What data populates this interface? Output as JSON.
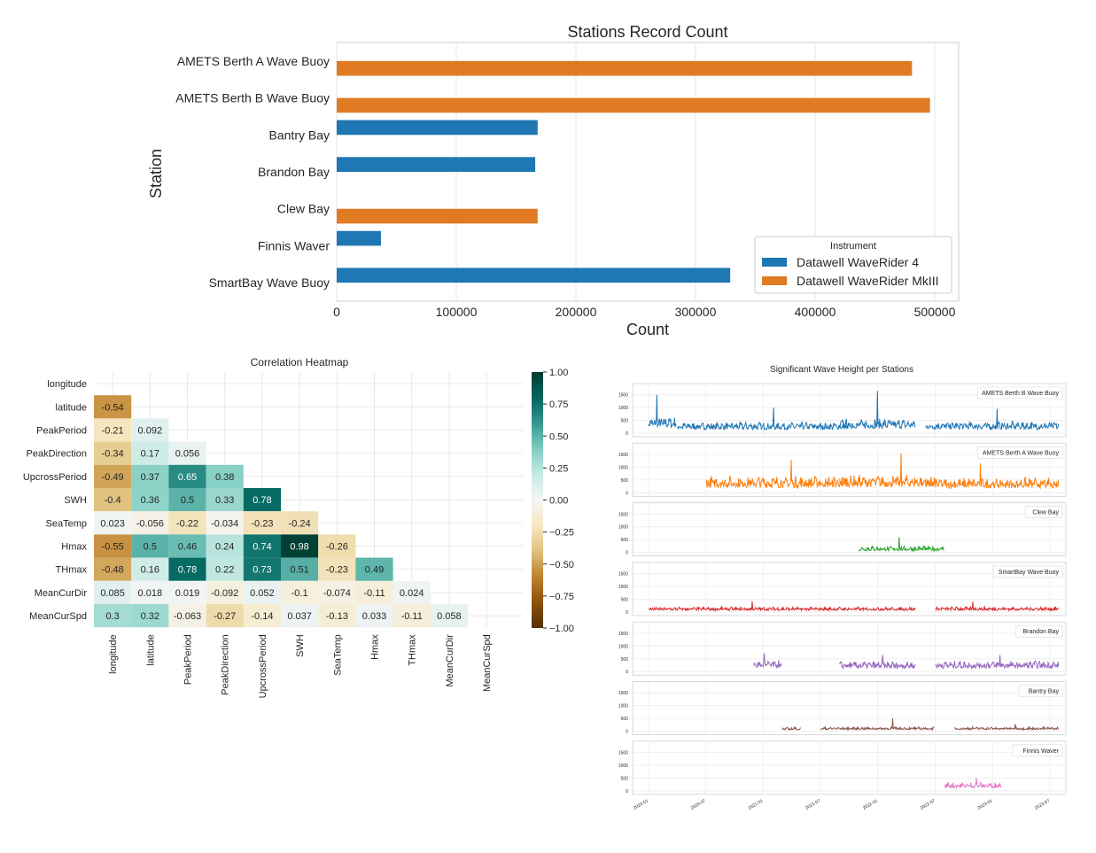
{
  "chart_data": [
    {
      "type": "bar",
      "orientation": "horizontal",
      "title": "Stations Record Count",
      "xlabel": "Count",
      "ylabel": "Station",
      "xlim": [
        0,
        520000
      ],
      "xticks": [
        0,
        100000,
        200000,
        300000,
        400000,
        500000
      ],
      "xtick_labels": [
        "0",
        "100000",
        "200000",
        "300000",
        "400000",
        "500000"
      ],
      "grid": true,
      "legend_placement": "lower-right",
      "legend_title": "Instrument",
      "series": [
        {
          "name": "Datawell WaveRider 4",
          "color": "#1f77b4"
        },
        {
          "name": "Datawell WaveRider MkIII",
          "color": "#e07b24"
        }
      ],
      "categories": [
        "AMETS Berth A Wave Buoy",
        "AMETS Berth B Wave Buoy",
        "Bantry Bay",
        "Brandon Bay",
        "Clew Bay",
        "Finnis Waver",
        "SmartBay Wave Buoy"
      ],
      "bars": [
        {
          "category": "AMETS Berth A Wave Buoy",
          "series": 1,
          "value": 481000
        },
        {
          "category": "AMETS Berth B Wave Buoy",
          "series": 1,
          "value": 496000
        },
        {
          "category": "Bantry Bay",
          "series": 0,
          "value": 168000
        },
        {
          "category": "Brandon Bay",
          "series": 0,
          "value": 166000
        },
        {
          "category": "Clew Bay",
          "series": 1,
          "value": 168000
        },
        {
          "category": "Finnis Waver",
          "series": 0,
          "value": 37000
        },
        {
          "category": "SmartBay Wave Buoy",
          "series": 0,
          "value": 329000
        }
      ]
    },
    {
      "type": "heatmap",
      "title": "Correlation Heatmap",
      "labels": [
        "longitude",
        "latitude",
        "PeakPeriod",
        "PeakDirection",
        "UpcrossPeriod",
        "SWH",
        "SeaTemp",
        "Hmax",
        "THmax",
        "MeanCurDir",
        "MeanCurSpd"
      ],
      "mask": "upper-triangle",
      "values": [
        [],
        [
          -0.54
        ],
        [
          -0.21,
          0.092
        ],
        [
          -0.34,
          0.17,
          0.056
        ],
        [
          -0.49,
          0.37,
          0.65,
          0.38
        ],
        [
          -0.4,
          0.36,
          0.5,
          0.33,
          0.78
        ],
        [
          0.023,
          -0.056,
          -0.22,
          -0.034,
          -0.23,
          -0.24
        ],
        [
          -0.55,
          0.5,
          0.46,
          0.24,
          0.74,
          0.98,
          -0.26
        ],
        [
          -0.48,
          0.16,
          0.78,
          0.22,
          0.73,
          0.51,
          -0.23,
          0.49
        ],
        [
          0.085,
          0.018,
          0.019,
          -0.092,
          0.052,
          -0.1,
          -0.074,
          -0.11,
          0.024
        ],
        [
          0.3,
          0.32,
          -0.063,
          -0.27,
          -0.14,
          0.037,
          -0.13,
          0.033,
          -0.11,
          0.058
        ]
      ],
      "colorbar": {
        "range": [
          -1,
          1
        ],
        "ticks": [
          1.0,
          0.75,
          0.5,
          0.25,
          0.0,
          -0.25,
          -0.5,
          -0.75,
          -1.0
        ],
        "tick_labels": [
          "1.00",
          "0.75",
          "0.50",
          "0.25",
          "0.00",
          "−0.25",
          "−0.50",
          "−0.75",
          "−1.00"
        ],
        "colormap": "BrBG"
      }
    },
    {
      "type": "line",
      "title": "Significant Wave Height per Stations",
      "layout": "stacked-subplots",
      "grid": true,
      "legend_placement": "top-right",
      "ylim": [
        0,
        1800
      ],
      "yticks": [
        0,
        500,
        1000,
        1500
      ],
      "ytick_labels": [
        "0",
        "500",
        "1000",
        "1500"
      ],
      "x_range": [
        "2020-01",
        "2023-07"
      ],
      "xtick_labels": [
        "2020-01",
        "2020-07",
        "2021-01",
        "2021-07",
        "2022-01",
        "2022-07",
        "2023-01",
        "2023-07"
      ],
      "series": [
        {
          "name": "AMETS Berth B Wave Buoy",
          "color": "#1f77b4",
          "segments": [
            {
              "start": "2020-01",
              "end": "2020-03",
              "base": 220,
              "amp": 420,
              "peak": 1500
            },
            {
              "start": "2020-04",
              "end": "2021-09",
              "base": 140,
              "amp": 300,
              "peak": 1000
            },
            {
              "start": "2021-09",
              "end": "2022-04",
              "base": 180,
              "amp": 380,
              "peak": 1650
            },
            {
              "start": "2022-06",
              "end": "2023-07",
              "base": 150,
              "amp": 320,
              "peak": 950
            }
          ]
        },
        {
          "name": "AMETS Berth A Wave Buoy",
          "color": "#ff7f0e",
          "segments": [
            {
              "start": "2020-07",
              "end": "2021-09",
              "base": 200,
              "amp": 480,
              "peak": 1300
            },
            {
              "start": "2021-09",
              "end": "2022-06",
              "base": 220,
              "amp": 500,
              "peak": 1550
            },
            {
              "start": "2022-06",
              "end": "2023-07",
              "base": 180,
              "amp": 420,
              "peak": 1150
            }
          ]
        },
        {
          "name": "Clew Bay",
          "color": "#2ca02c",
          "segments": [
            {
              "start": "2021-11",
              "end": "2022-07",
              "base": 60,
              "amp": 200,
              "peak": 600
            }
          ]
        },
        {
          "name": "SmartBay Wave Buoy",
          "color": "#d62728",
          "segments": [
            {
              "start": "2020-01",
              "end": "2022-04",
              "base": 60,
              "amp": 140,
              "peak": 420
            },
            {
              "start": "2022-07",
              "end": "2023-07",
              "base": 60,
              "amp": 150,
              "peak": 400
            }
          ]
        },
        {
          "name": "Brandon Bay",
          "color": "#9467bd",
          "segments": [
            {
              "start": "2020-12",
              "end": "2021-02",
              "base": 150,
              "amp": 300,
              "peak": 720
            },
            {
              "start": "2021-09",
              "end": "2022-04",
              "base": 130,
              "amp": 280,
              "peak": 650
            },
            {
              "start": "2022-07",
              "end": "2023-07",
              "base": 130,
              "amp": 300,
              "peak": 650
            }
          ]
        },
        {
          "name": "Bantry Bay",
          "color": "#8c564b",
          "segments": [
            {
              "start": "2021-03",
              "end": "2021-04",
              "base": 50,
              "amp": 100,
              "peak": 180
            },
            {
              "start": "2021-07",
              "end": "2022-06",
              "base": 60,
              "amp": 110,
              "peak": 500
            },
            {
              "start": "2022-09",
              "end": "2023-07",
              "base": 60,
              "amp": 110,
              "peak": 280
            }
          ]
        },
        {
          "name": "Finnis Waver",
          "color": "#e377c2",
          "segments": [
            {
              "start": "2022-08",
              "end": "2023-01",
              "base": 120,
              "amp": 220,
              "peak": 500
            }
          ]
        }
      ]
    }
  ]
}
